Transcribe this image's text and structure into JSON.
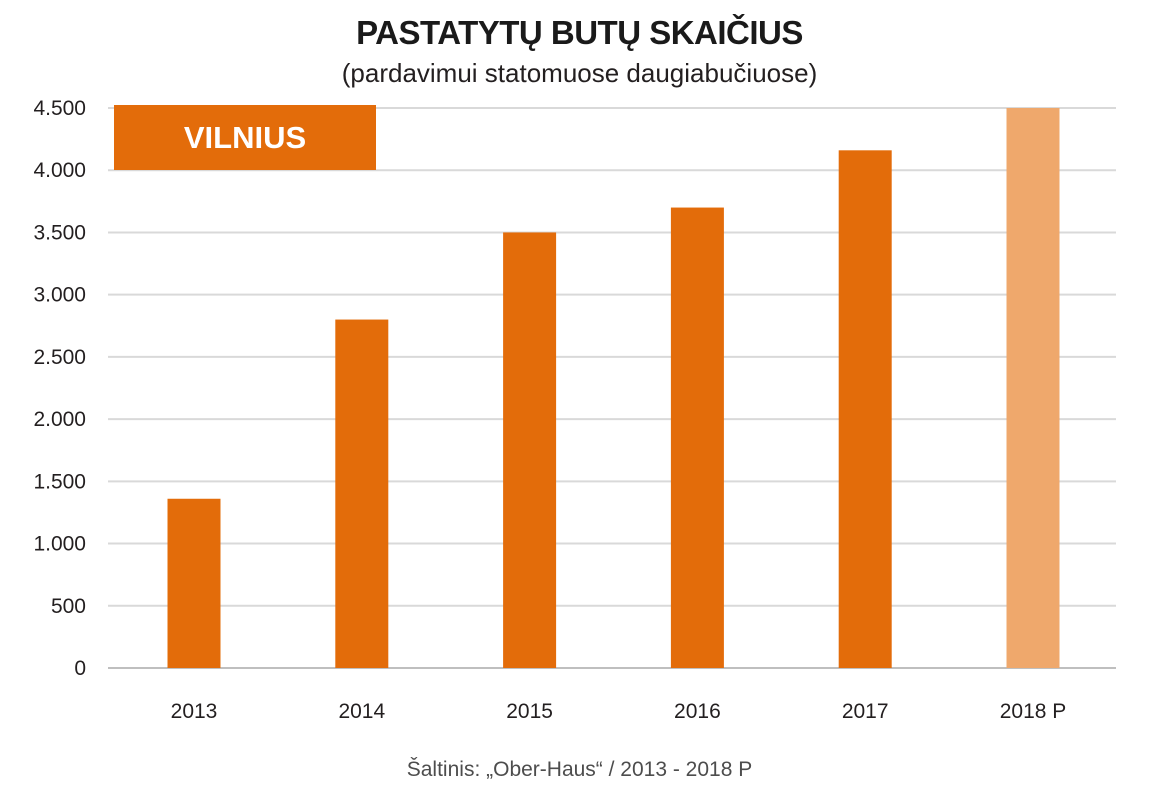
{
  "title": "PASTATYTŲ BUTŲ SKAIČIUS",
  "subtitle": "(pardavimui statomuose daugiabučiuose)",
  "source": "Šaltinis: „Ober-Haus“ / 2013 - 2018 P",
  "colors": {
    "bar": "#e36c0a",
    "bar_forecast": "#efa86c",
    "badge": "#e36c0a",
    "grid": "#d9d9d9",
    "axis": "#bfbfbf"
  },
  "chart_data": {
    "type": "bar",
    "badge": "VILNIUS",
    "categories": [
      "2013",
      "2014",
      "2015",
      "2016",
      "2017",
      "2018 P"
    ],
    "values": [
      1360,
      2800,
      3500,
      3700,
      4160,
      4500
    ],
    "forecast": [
      false,
      false,
      false,
      false,
      false,
      true
    ],
    "ylim": [
      0,
      4500
    ],
    "yticks": [
      0,
      500,
      1000,
      1500,
      2000,
      2500,
      3000,
      3500,
      4000,
      4500
    ],
    "ytick_labels": [
      "0",
      "500",
      "1.000",
      "1.500",
      "2.000",
      "2.500",
      "3.000",
      "3.500",
      "4.000",
      "4.500"
    ],
    "grid": true,
    "xlabel": "",
    "ylabel": ""
  }
}
